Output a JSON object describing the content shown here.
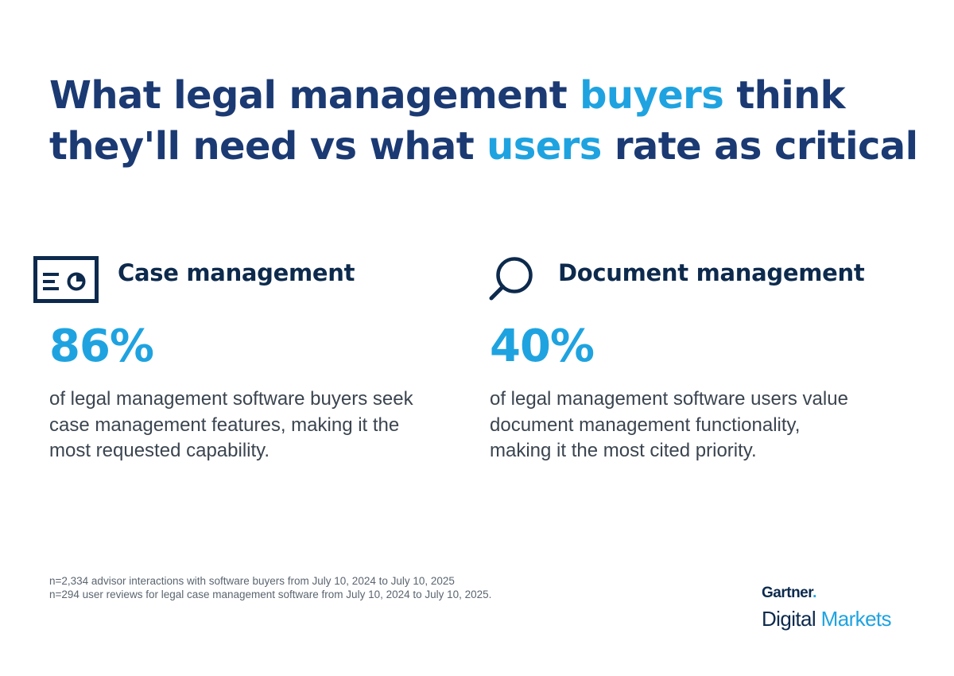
{
  "title": {
    "part1": "What legal management ",
    "accent1": "buyers",
    "part2": " think they'll need vs what ",
    "accent2": "users",
    "part3": " rate as critical"
  },
  "colors": {
    "navy": "#1b3a73",
    "accent": "#1fa3e0",
    "text": "#3b4550"
  },
  "left": {
    "icon": "dashboard-report-icon",
    "label": "Case management",
    "stat": "86%",
    "description": "of legal management software buyers seek case management features, making it the most requested capability."
  },
  "right": {
    "icon": "magnifying-glass-icon",
    "label": "Document management",
    "stat": "40%",
    "description": "of legal management software users value document management functionality, making it the most cited priority."
  },
  "footnotes": [
    "n=2,334 advisor interactions with software buyers from July 10, 2024 to July 10, 2025",
    "n=294 user reviews for legal case management software from July 10, 2024 to July 10, 2025."
  ],
  "brand": {
    "top": "Gartner",
    "top_dot": ".",
    "bottom_1": "Digital",
    "bottom_2": " Markets"
  }
}
